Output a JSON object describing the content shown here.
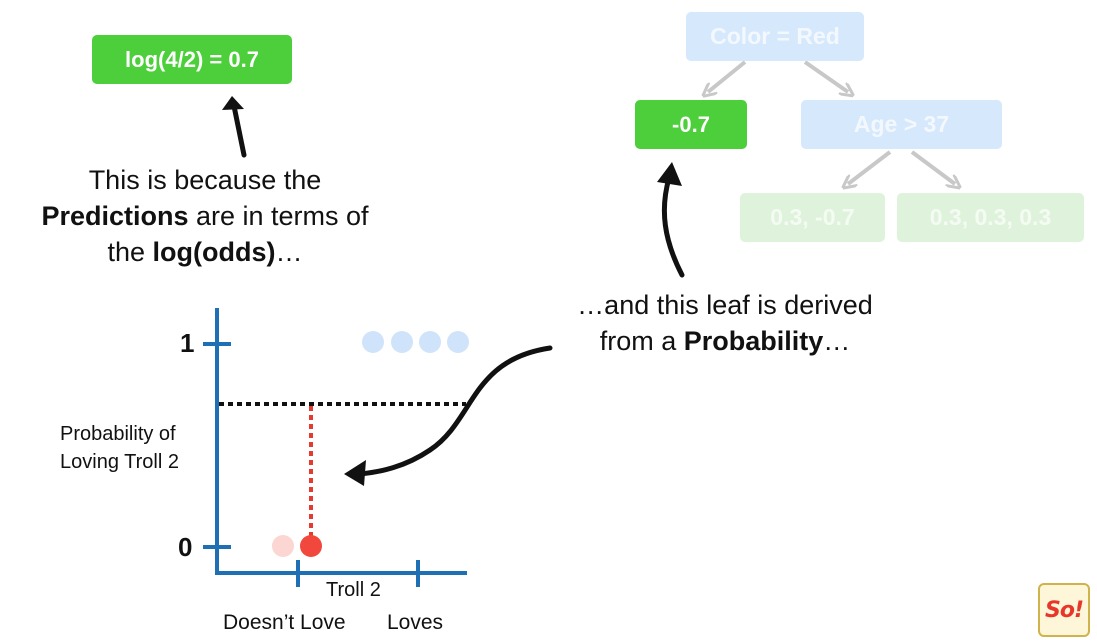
{
  "top_left_box": {
    "label": "log(4/2) = 0.7"
  },
  "left_caption": {
    "line1": "This is because the",
    "line2_bold": "Predictions",
    "line2_rest": " are in terms of",
    "line3_pre": "the ",
    "line3_bold": "log(odds)",
    "line3_post": "…"
  },
  "tree": {
    "root": "Color = Red",
    "left_leaf": "-0.7",
    "right_node": "Age > 37",
    "leaf_a": "0.3, -0.7",
    "leaf_b": "0.3, 0.3, 0.3"
  },
  "right_caption": {
    "line1": "…and this leaf is derived",
    "line2_pre": "from a ",
    "line2_bold": "Probability",
    "line2_post": "…"
  },
  "plot": {
    "y_tick_top": "1",
    "y_tick_bottom": "0",
    "y_label_line1": "Probability of",
    "y_label_line2": "Loving Troll 2",
    "x_label": "Troll 2",
    "x_tick_left": "Doesn’t Love",
    "x_tick_right": "Loves",
    "points_loves": 4,
    "points_doesnt_love": 2,
    "predicted_probability": 0.67
  },
  "colors": {
    "green": "#4ccf3a",
    "axis_blue": "#1f6fb4",
    "point_blue": "#cfe3fa",
    "point_red": "#f2473d",
    "point_red_faded": "#fbd6d2"
  },
  "logo": {
    "text": "So!"
  }
}
